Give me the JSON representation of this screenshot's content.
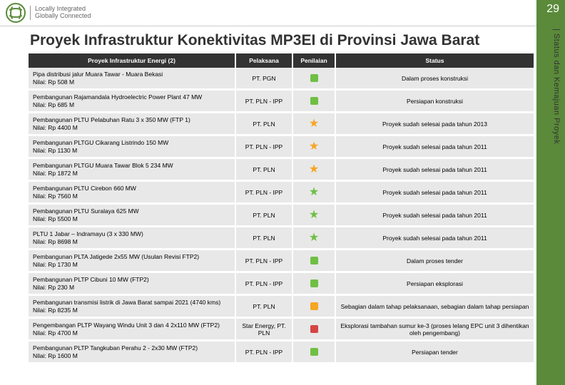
{
  "page_number": "29",
  "side_label": "| Status dan Kemajuan Proyek",
  "logo": {
    "line1": "Locally Integrated",
    "line2": "Globally Connected"
  },
  "title": "Proyek Infrastruktur Konektivitas MP3EI di Provinsi Jawa Barat",
  "columns": [
    "Proyek Infrastruktur Energi (2)",
    "Pelaksana",
    "Penilaian",
    "Status"
  ],
  "colors": {
    "star_orange": "#f5a623",
    "star_green": "#6fbf44",
    "sq_green": "#6fbf44",
    "sq_orange": "#f5a623",
    "sq_red": "#d64545",
    "header_bg": "#333333",
    "row_bg": "#e8e8e8",
    "sidebar": "#5a8a3a"
  },
  "rows": [
    {
      "name": "Pipa distribusi jalur Muara Tawar - Muara Bekasi",
      "nilai": "Nilai:  Rp 508  M",
      "pelaksana": "PT. PGN",
      "icon": "sq",
      "icon_color": "#6fbf44",
      "status": "Dalam proses konstruksi"
    },
    {
      "name": "Pembangunan Rajamandala Hydroelectric Power Plant 47 MW",
      "nilai": "Nilai:  Rp 685  M",
      "pelaksana": "PT. PLN - IPP",
      "icon": "sq",
      "icon_color": "#6fbf44",
      "status": "Persiapan konstruksi"
    },
    {
      "name": "Pembangunan PLTU Pelabuhan Ratu 3 x 350 MW (FTP 1)",
      "nilai": "Nilai:  Rp 4400 M",
      "pelaksana": "PT. PLN",
      "icon": "star",
      "icon_color": "#f5a623",
      "status": "Proyek sudah selesai pada tahun 2013"
    },
    {
      "name": " Pembangunan PLTGU Cikarang Listrindo 150 MW",
      "nilai": "Nilai:  Rp 1130 M",
      "pelaksana": "PT. PLN - IPP",
      "icon": "star",
      "icon_color": "#f5a623",
      "status": "Proyek sudah selesai pada tahun 2011"
    },
    {
      "name": "Pembangunan PLTGU Muara Tawar Blok 5 234 MW",
      "nilai": "Nilai:  Rp 1872  M",
      "pelaksana": "PT. PLN",
      "icon": "star",
      "icon_color": "#f5a623",
      "status": "Proyek sudah selesai pada tahun 2011"
    },
    {
      "name": "Pembangunan PLTU Cirebon 660 MW",
      "nilai": "Nilai:  Rp 7560 M",
      "pelaksana": "PT. PLN - IPP",
      "icon": "star",
      "icon_color": "#6fbf44",
      "status": "Proyek sudah selesai pada tahun 2011"
    },
    {
      "name": "Pembangunan PLTU Suralaya 625 MW",
      "nilai": "Nilai:  Rp 5500 M",
      "pelaksana": "PT. PLN",
      "icon": "star",
      "icon_color": "#6fbf44",
      "status": "Proyek sudah selesai pada tahun 2011"
    },
    {
      "name": "PLTU 1 Jabar – Indramayu (3 x 330 MW)",
      "nilai": "Nilai:  Rp 8698 M",
      "pelaksana": "PT. PLN",
      "icon": "star",
      "icon_color": "#6fbf44",
      "status": "Proyek sudah selesai pada tahun 2011"
    },
    {
      "name": "Pembangunan PLTA Jatigede 2x55 MW (Usulan Revisi FTP2)",
      "nilai": "Nilai:  Rp 1730 M",
      "pelaksana": "PT. PLN - IPP",
      "icon": "sq",
      "icon_color": "#6fbf44",
      "status": "Dalam proses tender"
    },
    {
      "name": "Pembangunan PLTP Cibuni 10 MW (FTP2)",
      "nilai": "Nilai:  Rp 230 M",
      "pelaksana": "PT. PLN - IPP",
      "icon": "sq",
      "icon_color": "#6fbf44",
      "status": "Persiapan eksplorasi"
    },
    {
      "name": "Pembangunan transmisi listrik di Jawa Barat sampai 2021 (4740 kms)",
      "nilai": "Nilai:  Rp 8235  M",
      "pelaksana": "PT. PLN",
      "icon": "sq",
      "icon_color": "#f5a623",
      "status": "Sebagian dalam tahap pelaksanaan, sebagian dalam tahap persiapan"
    },
    {
      "name": "Pengembangan PLTP Wayang Windu Unit 3 dan 4 2x110 MW (FTP2)",
      "nilai": "Nilai:  Rp 4700 M",
      "pelaksana": "Star Energy, PT. PLN",
      "icon": "sq",
      "icon_color": "#d64545",
      "status": "Eksplorasi tambahan sumur ke-3 (proses lelang EPC unit 3 dihentikan oleh pengembang)"
    },
    {
      "name": "Pembangunan PLTP Tangkuban Perahu 2 - 2x30 MW (FTP2)",
      "nilai": "Nilai:  Rp 1600 M",
      "pelaksana": "PT. PLN - IPP",
      "icon": "sq",
      "icon_color": "#6fbf44",
      "status": "Persiapan tender"
    }
  ]
}
